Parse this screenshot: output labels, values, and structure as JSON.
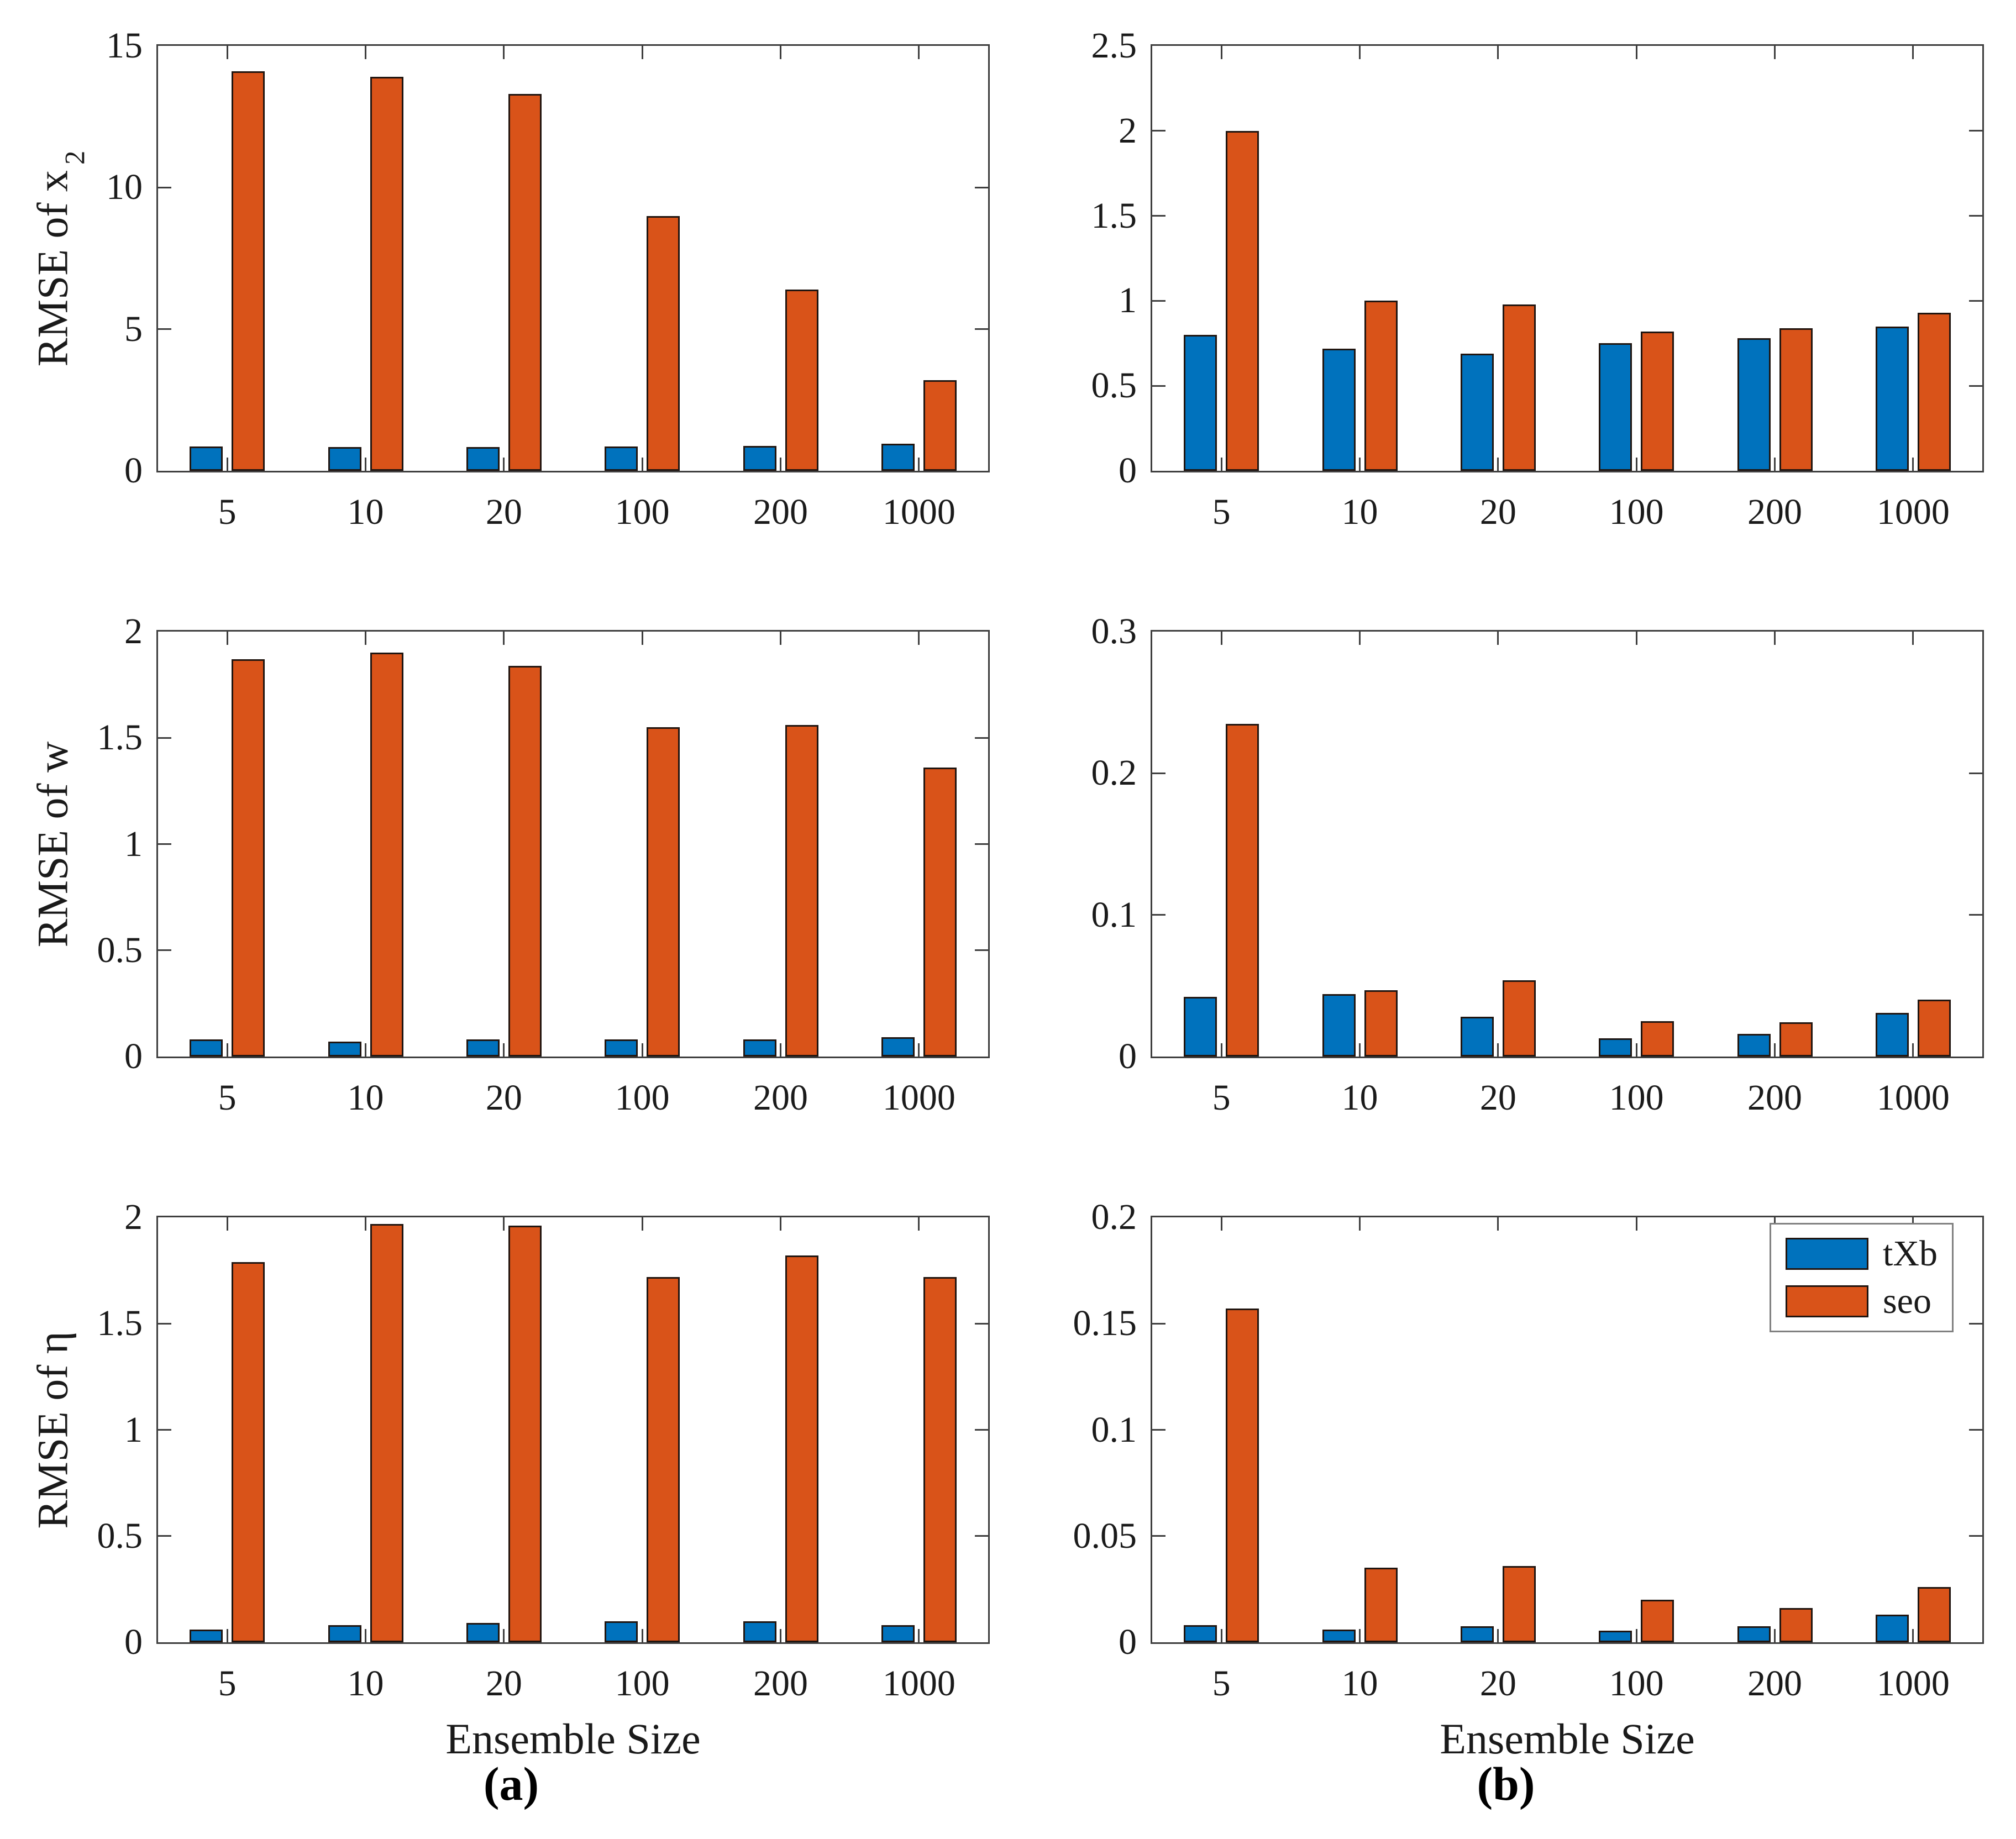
{
  "figure": {
    "xlabel": "Ensemble Size",
    "captions": {
      "a": "(a)",
      "b": "(b)"
    },
    "series_colors": {
      "tXb": "#0072BD",
      "seo": "#D95319"
    },
    "bar_edge_color": "#201510",
    "axis_color": "#3f3f3f",
    "categories": [
      "5",
      "10",
      "20",
      "100",
      "200",
      "1000"
    ],
    "legend": {
      "position": "top-right-of-bottom-right-subplot",
      "entries": [
        {
          "label": "tXb",
          "color": "#0072BD"
        },
        {
          "label": "seo",
          "color": "#D95319"
        }
      ]
    }
  },
  "chart_data": [
    {
      "id": "rmse-x2",
      "panel": "a",
      "row": 1,
      "type": "bar",
      "ylabel": "RMSE of x",
      "ylabel_sub": "2",
      "ylim": [
        0,
        15
      ],
      "yticks": [
        0,
        5,
        10,
        15
      ],
      "ytick_labels": [
        "0",
        "5",
        "10",
        "15"
      ],
      "categories": [
        "5",
        "10",
        "20",
        "100",
        "200",
        "1000"
      ],
      "series": [
        {
          "name": "tXb",
          "values": [
            0.86,
            0.83,
            0.83,
            0.85,
            0.88,
            0.95
          ]
        },
        {
          "name": "seo",
          "values": [
            14.1,
            13.9,
            13.3,
            9.0,
            6.4,
            3.2
          ]
        }
      ],
      "xlabel": "",
      "legend": false,
      "grid": false
    },
    {
      "id": "rmse-x2-zoom",
      "panel": "b",
      "row": 1,
      "type": "bar",
      "ylabel": "",
      "ylabel_sub": "",
      "ylim": [
        0,
        2.5
      ],
      "yticks": [
        0,
        0.5,
        1,
        1.5,
        2,
        2.5
      ],
      "ytick_labels": [
        "0",
        "0.5",
        "1",
        "1.5",
        "2",
        "2.5"
      ],
      "categories": [
        "5",
        "10",
        "20",
        "100",
        "200",
        "1000"
      ],
      "series": [
        {
          "name": "tXb",
          "values": [
            0.8,
            0.72,
            0.69,
            0.75,
            0.78,
            0.85
          ]
        },
        {
          "name": "seo",
          "values": [
            2.0,
            1.0,
            0.98,
            0.82,
            0.84,
            0.93
          ]
        }
      ],
      "xlabel": "",
      "legend": false,
      "grid": false
    },
    {
      "id": "rmse-w",
      "panel": "a",
      "row": 2,
      "type": "bar",
      "ylabel": "RMSE of w",
      "ylabel_sub": "",
      "ylim": [
        0,
        2
      ],
      "yticks": [
        0,
        0.5,
        1,
        1.5,
        2
      ],
      "ytick_labels": [
        "0",
        "0.5",
        "1",
        "1.5",
        "2"
      ],
      "categories": [
        "5",
        "10",
        "20",
        "100",
        "200",
        "1000"
      ],
      "series": [
        {
          "name": "tXb",
          "values": [
            0.08,
            0.07,
            0.08,
            0.08,
            0.08,
            0.09
          ]
        },
        {
          "name": "seo",
          "values": [
            1.87,
            1.9,
            1.84,
            1.55,
            1.56,
            1.36
          ]
        }
      ],
      "xlabel": "",
      "legend": false,
      "grid": false
    },
    {
      "id": "rmse-w-zoom",
      "panel": "b",
      "row": 2,
      "type": "bar",
      "ylabel": "",
      "ylabel_sub": "",
      "ylim": [
        0,
        0.3
      ],
      "yticks": [
        0,
        0.1,
        0.2,
        0.3
      ],
      "ytick_labels": [
        "0",
        "0.1",
        "0.2",
        "0.3"
      ],
      "categories": [
        "5",
        "10",
        "20",
        "100",
        "200",
        "1000"
      ],
      "series": [
        {
          "name": "tXb",
          "values": [
            0.042,
            0.044,
            0.028,
            0.013,
            0.016,
            0.031
          ]
        },
        {
          "name": "seo",
          "values": [
            0.235,
            0.047,
            0.054,
            0.025,
            0.024,
            0.04
          ]
        }
      ],
      "xlabel": "",
      "legend": false,
      "grid": false
    },
    {
      "id": "rmse-eta",
      "panel": "a",
      "row": 3,
      "type": "bar",
      "ylabel": "RMSE of η",
      "ylabel_sub": "",
      "ylim": [
        0,
        2
      ],
      "yticks": [
        0,
        0.5,
        1,
        1.5,
        2
      ],
      "ytick_labels": [
        "0",
        "0.5",
        "1",
        "1.5",
        "2"
      ],
      "categories": [
        "5",
        "10",
        "20",
        "100",
        "200",
        "1000"
      ],
      "series": [
        {
          "name": "tXb",
          "values": [
            0.06,
            0.08,
            0.09,
            0.1,
            0.1,
            0.08
          ]
        },
        {
          "name": "seo",
          "values": [
            1.79,
            1.97,
            1.96,
            1.72,
            1.82,
            1.72
          ]
        }
      ],
      "xlabel": "Ensemble Size",
      "legend": false,
      "grid": false
    },
    {
      "id": "rmse-eta-zoom",
      "panel": "b",
      "row": 3,
      "type": "bar",
      "ylabel": "",
      "ylabel_sub": "",
      "ylim": [
        0,
        0.2
      ],
      "yticks": [
        0,
        0.05,
        0.1,
        0.15,
        0.2
      ],
      "ytick_labels": [
        "0",
        "0.05",
        "0.1",
        "0.15",
        "0.2"
      ],
      "categories": [
        "5",
        "10",
        "20",
        "100",
        "200",
        "1000"
      ],
      "series": [
        {
          "name": "tXb",
          "values": [
            0.008,
            0.006,
            0.0075,
            0.0055,
            0.0075,
            0.013
          ]
        },
        {
          "name": "seo",
          "values": [
            0.157,
            0.035,
            0.036,
            0.02,
            0.016,
            0.026
          ]
        }
      ],
      "xlabel": "Ensemble Size",
      "legend": true,
      "grid": false
    }
  ]
}
